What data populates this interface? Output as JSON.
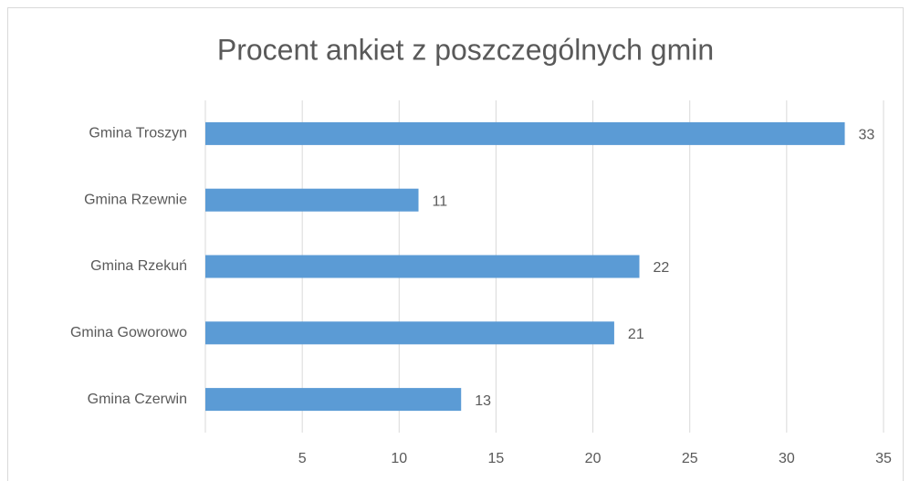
{
  "chart_data": {
    "type": "bar",
    "orientation": "horizontal",
    "title": "Procent ankiet z poszczególnych gmin",
    "categories": [
      "Gmina Troszyn",
      "Gmina Rzewnie",
      "Gmina Rzekuń",
      "Gmina Goworowo",
      "Gmina Czerwin"
    ],
    "values": [
      33,
      11,
      22.4,
      21.1,
      13.2
    ],
    "value_labels": [
      "33",
      "11",
      "22",
      "21",
      "13"
    ],
    "color": "#5b9bd5",
    "xlim": [
      0,
      35
    ],
    "xticks": [
      5,
      10,
      15,
      20,
      25,
      30,
      35
    ],
    "grid": true
  }
}
